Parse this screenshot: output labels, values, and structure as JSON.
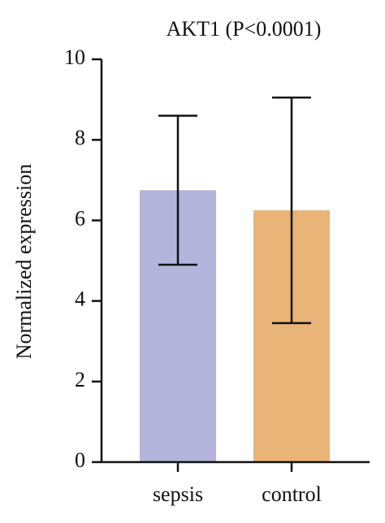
{
  "chart_data": {
    "type": "bar",
    "title": "AKT1 (P<0.0001)",
    "y_label": "Normalized expression",
    "categories": [
      "sepsis",
      "control"
    ],
    "values": [
      6.75,
      6.25
    ],
    "errors": [
      1.85,
      2.8
    ],
    "colors": [
      "#b4b4dc",
      "#e8b478"
    ],
    "ylim": [
      0,
      10
    ],
    "yticks": [
      0,
      2,
      4,
      6,
      8,
      10
    ],
    "grid": false
  }
}
